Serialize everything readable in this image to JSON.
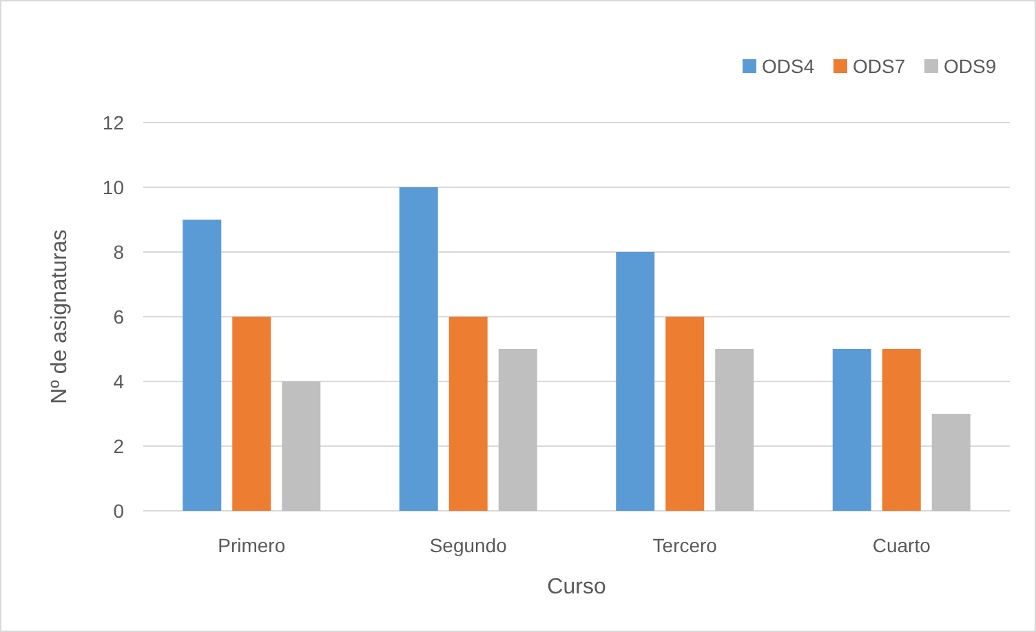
{
  "chart_data": {
    "type": "bar",
    "xlabel": "Curso",
    "ylabel": "Nº de asignaturas",
    "categories": [
      "Primero",
      "Segundo",
      "Tercero",
      "Cuarto"
    ],
    "series": [
      {
        "name": "ODS4",
        "color": "#5b9bd5",
        "values": [
          9,
          10,
          8,
          5
        ]
      },
      {
        "name": "ODS7",
        "color": "#ed7d31",
        "values": [
          6,
          6,
          6,
          5
        ]
      },
      {
        "name": "ODS9",
        "color": "#bfbfbf",
        "values": [
          4,
          5,
          5,
          3
        ]
      }
    ],
    "ylim": [
      0,
      12
    ],
    "yticks": [
      0,
      2,
      4,
      6,
      8,
      10,
      12
    ],
    "grid": "y",
    "legend": "top right"
  }
}
